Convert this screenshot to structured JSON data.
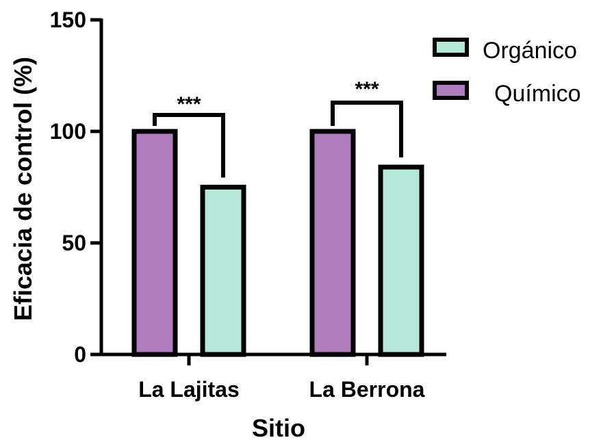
{
  "chart_data": {
    "type": "bar",
    "title": "",
    "xlabel": "Sitio",
    "ylabel": "Eficacia de control  (%)",
    "categories": [
      "La Lajitas",
      "La Berrona"
    ],
    "series": [
      {
        "name": "Químico",
        "values": [
          100,
          100
        ],
        "color": "#b07cc0"
      },
      {
        "name": "Orgánico",
        "values": [
          75,
          84
        ],
        "color": "#b4e8d8"
      }
    ],
    "ylim": [
      0,
      150
    ],
    "yticks": [
      0,
      50,
      100,
      150
    ],
    "legend": {
      "placement": "top-right",
      "items": [
        "Orgánico",
        "Químico"
      ]
    },
    "annotations": [
      {
        "category": "La Lajitas",
        "text": "***"
      },
      {
        "category": "La Berrona",
        "text": "***"
      }
    ],
    "grid": false
  }
}
